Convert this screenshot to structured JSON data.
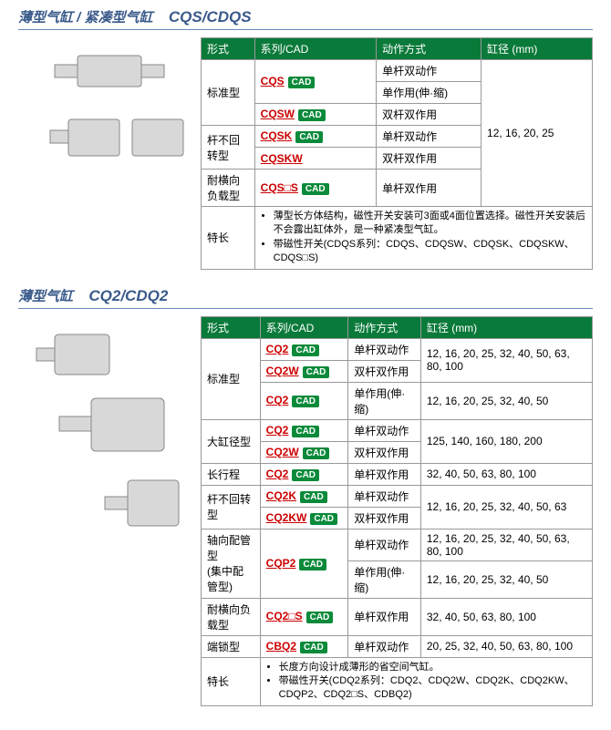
{
  "sections": [
    {
      "title_cn": "薄型气缸 / 紧凑型气缸",
      "title_model": "CQS/CDQS",
      "headers": [
        "形式",
        "系列/CAD",
        "动作方式",
        "缸径 (mm)"
      ],
      "bore_combined": "12, 16, 20, 25",
      "rows": [
        {
          "form": "标准型",
          "form_rowspan": 3,
          "series": "CQS",
          "cad": true,
          "action": "单杆双动作"
        },
        {
          "action": "单作用(伸·缩)"
        },
        {
          "series": "CQSW",
          "cad": true,
          "action": "双杆双作用"
        },
        {
          "form": "杆不回转型",
          "form_rowspan": 2,
          "series": "CQSK",
          "cad": true,
          "action": "单杆双动作"
        },
        {
          "series": "CQSKW",
          "action": "双杆双作用"
        },
        {
          "form": "耐横向负载型",
          "series": "CQS□S",
          "cad": true,
          "action": "单杆双作用"
        }
      ],
      "feature_label": "特长",
      "features": [
        "薄型长方体结构，磁性开关安装可3面或4面位置选择。磁性开关安装后不会露出缸体外，是一种紧凑型气缸。",
        "带磁性开关(CDQS系列：CDQS、CDQSW、CDQSK、CDQSKW、CDQS□S)"
      ]
    },
    {
      "title_cn": "薄型气缸",
      "title_model": "CQ2/CDQ2",
      "headers": [
        "形式",
        "系列/CAD",
        "动作方式",
        "缸径 (mm)"
      ],
      "rows2": [
        {
          "form": "标准型",
          "form_rowspan": 3,
          "series": "CQ2",
          "cad": true,
          "action": "单杆双动作",
          "bore": "12, 16, 20, 25, 32, 40, 50, 63, 80, 100"
        },
        {
          "series": "CQ2W",
          "cad": true,
          "action": "双杆双作用",
          "bore_merge_up": true
        },
        {
          "series": "CQ2",
          "cad": true,
          "action": "单作用(伸·缩)",
          "bore": "12, 16, 20, 25, 32, 40, 50"
        },
        {
          "form": "大缸径型",
          "form_rowspan": 2,
          "series": "CQ2",
          "cad": true,
          "action": "单杆双动作",
          "bore": "125, 140, 160, 180, 200"
        },
        {
          "series": "CQ2W",
          "cad": true,
          "action": "双杆双作用",
          "bore_merge_up": true
        },
        {
          "form": "长行程",
          "series": "CQ2",
          "cad": true,
          "action": "单杆双作用",
          "bore": "32, 40, 50, 63, 80, 100"
        },
        {
          "form": "杆不回转型",
          "form_rowspan": 2,
          "series": "CQ2K",
          "cad": true,
          "action": "单杆双动作",
          "bore": "12, 16, 20, 25, 32, 40, 50, 63"
        },
        {
          "series": "CQ2KW",
          "cad": true,
          "action": "双杆双作用",
          "bore_merge_up": true
        },
        {
          "form": "轴向配管型\n(集中配管型)",
          "form_rowspan": 2,
          "series": "CQP2",
          "cad": true,
          "series_rowspan": 2,
          "action": "单杆双动作",
          "bore": "12, 16, 20, 25, 32, 40, 50, 63, 80, 100"
        },
        {
          "action": "单作用(伸·缩)",
          "bore": "12, 16, 20, 25, 32, 40, 50"
        },
        {
          "form": "耐横向负载型",
          "series": "CQ2□S",
          "cad": true,
          "action": "单杆双作用",
          "bore": "32, 40, 50, 63, 80, 100"
        },
        {
          "form": "端锁型",
          "series": "CBQ2",
          "cad": true,
          "action": "单杆双动作",
          "bore": "20, 25, 32, 40, 50, 63, 80, 100"
        }
      ],
      "feature_label": "特长",
      "features": [
        "长度方向设计成薄形的省空间气缸。",
        "带磁性开关(CDQ2系列：CDQ2、CDQ2W、CDQ2K、CDQ2KW、CDQP2、CDQ2□S、CDBQ2)"
      ]
    }
  ],
  "cad_label": "CAD"
}
